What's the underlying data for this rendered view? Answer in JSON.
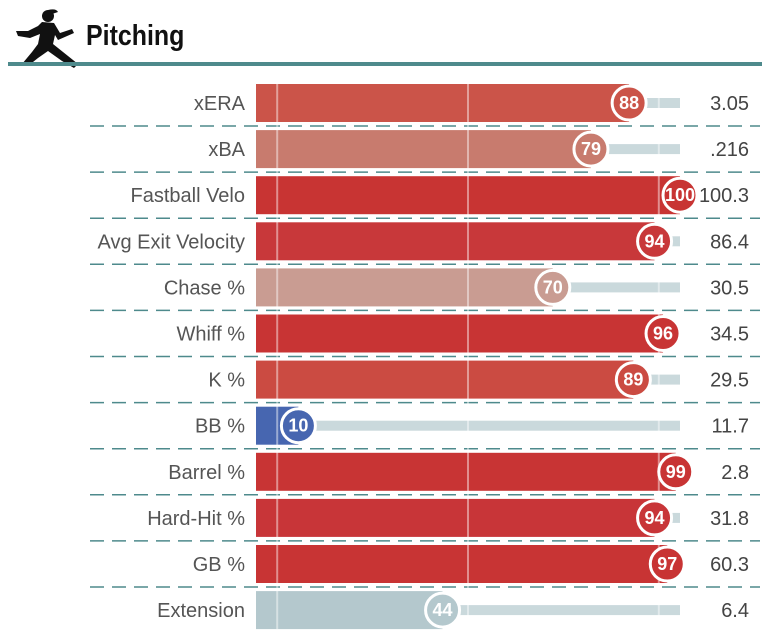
{
  "section": {
    "title": "Pitching",
    "icon": "pitcher-icon"
  },
  "colors": {
    "rule": "#4e8a8c",
    "track": "#cad9dc",
    "divider": "#4e8a8c",
    "high": "#c8312f",
    "low": "#4766b0"
  },
  "chart_data": {
    "type": "bar",
    "orientation": "horizontal",
    "xlim": [
      0,
      100
    ],
    "categories": [
      "xERA",
      "xBA",
      "Fastball Velo",
      "Avg Exit Velocity",
      "Chase %",
      "Whiff %",
      "K %",
      "BB %",
      "Barrel %",
      "Hard-Hit %",
      "GB %",
      "Extension"
    ],
    "series": [
      {
        "values": [
          88,
          79,
          100,
          94,
          70,
          96,
          89,
          10,
          99,
          94,
          97,
          44
        ]
      }
    ],
    "value_labels": [
      "3.05",
      ".216",
      "100.3",
      "86.4",
      "30.5",
      "34.5",
      "29.5",
      "11.7",
      "2.8",
      "31.8",
      "60.3",
      "6.4"
    ],
    "bar_colors": [
      "#cb5449",
      "#c87b6e",
      "#c83433",
      "#c8383a",
      "#c99c92",
      "#c83434",
      "#cb4b42",
      "#4766b0",
      "#c83434",
      "#c83538",
      "#c83434",
      "#b4c8cd"
    ],
    "badge_colors": [
      "#cb5449",
      "#c87b6e",
      "#c83433",
      "#c8383a",
      "#c99c92",
      "#c83434",
      "#cb4b42",
      "#4766b0",
      "#c83434",
      "#c83538",
      "#c83434",
      "#b4c8cd"
    ]
  }
}
